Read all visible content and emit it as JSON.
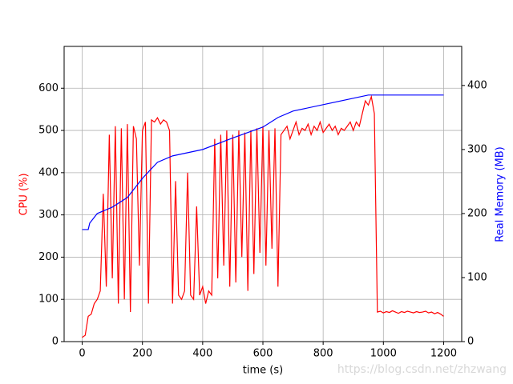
{
  "chart_data": {
    "type": "line",
    "xlabel": "time (s)",
    "ylabel": "CPU (%)",
    "y2label": "Real Memory (MB)",
    "xlim": [
      -60,
      1260
    ],
    "ylim": [
      0,
      699
    ],
    "y2lim": [
      0,
      461
    ],
    "xticks": [
      0,
      200,
      400,
      600,
      800,
      1000,
      1200
    ],
    "yticks": [
      0,
      100,
      200,
      300,
      400,
      500,
      600
    ],
    "y2ticks": [
      0,
      100,
      200,
      300,
      400
    ],
    "grid": true,
    "watermark": "https://blog.csdn.net/zhzwang",
    "series": [
      {
        "color": "#ff0000",
        "axis": "y",
        "x": [
          0,
          10,
          20,
          30,
          40,
          50,
          60,
          70,
          80,
          90,
          100,
          110,
          120,
          130,
          140,
          150,
          160,
          170,
          180,
          190,
          200,
          210,
          220,
          230,
          240,
          250,
          260,
          270,
          280,
          290,
          300,
          310,
          320,
          330,
          340,
          350,
          360,
          370,
          380,
          390,
          400,
          410,
          420,
          430,
          440,
          450,
          460,
          470,
          480,
          490,
          500,
          510,
          520,
          530,
          540,
          550,
          560,
          570,
          580,
          590,
          600,
          610,
          620,
          630,
          640,
          650,
          660,
          670,
          680,
          690,
          700,
          710,
          720,
          730,
          740,
          750,
          760,
          770,
          780,
          790,
          800,
          810,
          820,
          830,
          840,
          850,
          860,
          870,
          880,
          890,
          900,
          910,
          920,
          930,
          940,
          950,
          960,
          970,
          980,
          990,
          1000,
          1010,
          1020,
          1030,
          1040,
          1050,
          1060,
          1070,
          1080,
          1090,
          1100,
          1110,
          1120,
          1130,
          1140,
          1150,
          1160,
          1170,
          1180,
          1190,
          1200
        ],
        "values": [
          10,
          15,
          60,
          65,
          90,
          100,
          120,
          350,
          130,
          490,
          150,
          510,
          90,
          505,
          100,
          515,
          70,
          510,
          480,
          180,
          500,
          520,
          90,
          525,
          520,
          530,
          515,
          525,
          520,
          500,
          90,
          380,
          110,
          100,
          120,
          400,
          110,
          100,
          320,
          110,
          130,
          90,
          120,
          110,
          480,
          150,
          490,
          180,
          500,
          130,
          490,
          140,
          500,
          200,
          495,
          120,
          500,
          160,
          505,
          210,
          510,
          180,
          500,
          220,
          505,
          130,
          490,
          500,
          510,
          480,
          500,
          520,
          490,
          505,
          500,
          515,
          490,
          510,
          500,
          520,
          495,
          505,
          515,
          500,
          510,
          490,
          505,
          500,
          510,
          520,
          500,
          520,
          510,
          540,
          570,
          560,
          580,
          540,
          70,
          72,
          68,
          71,
          69,
          73,
          70,
          67,
          71,
          69,
          72,
          70,
          68,
          71,
          69,
          70,
          72,
          68,
          70,
          66,
          69,
          65,
          60
        ]
      },
      {
        "color": "#0000ff",
        "axis": "y2",
        "x": [
          0,
          20,
          25,
          50,
          100,
          150,
          200,
          250,
          300,
          400,
          500,
          600,
          650,
          700,
          800,
          900,
          950,
          1200
        ],
        "values": [
          175,
          175,
          185,
          200,
          210,
          225,
          255,
          280,
          290,
          300,
          318,
          335,
          350,
          360,
          370,
          380,
          385,
          385
        ]
      }
    ]
  }
}
